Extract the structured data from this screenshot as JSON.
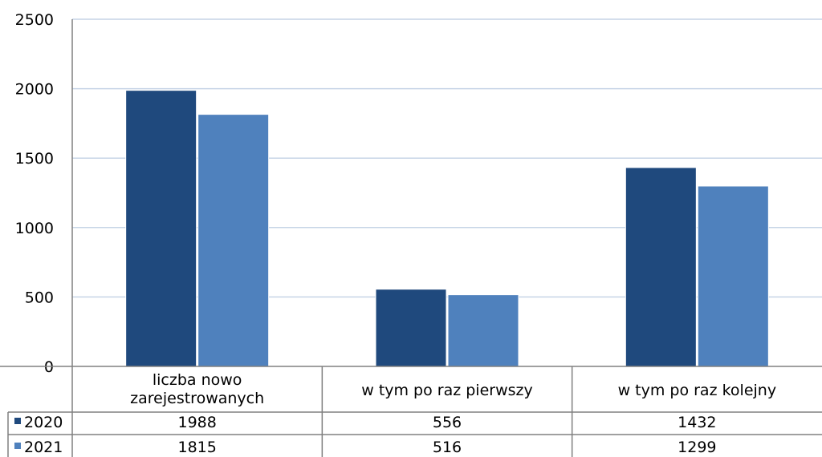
{
  "chart_data": {
    "type": "bar",
    "categories": [
      "liczba nowo zarejestrowanych",
      "w tym po raz pierwszy",
      "w tym po raz kolejny"
    ],
    "series": [
      {
        "name": "2020",
        "values": [
          1988,
          556,
          1432
        ],
        "color": "#1f497d"
      },
      {
        "name": "2021",
        "values": [
          1815,
          516,
          1299
        ],
        "color": "#4f81bd"
      }
    ],
    "ylim": [
      0,
      2500
    ],
    "yticks": [
      0,
      500,
      1000,
      1500,
      2000,
      2500
    ],
    "grid": true,
    "legend": "data-table",
    "title": "",
    "xlabel": "",
    "ylabel": ""
  }
}
